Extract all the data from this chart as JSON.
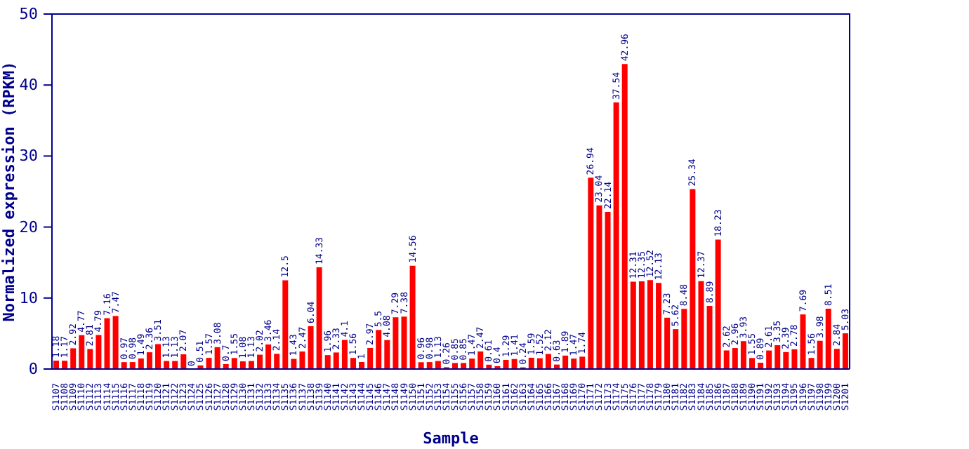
{
  "chart_data": {
    "type": "bar",
    "xlabel": "Sample",
    "ylabel": "Normalized expression (RPKM)",
    "categories": [
      "S1107",
      "S1108",
      "S1109",
      "S1110",
      "S1112",
      "S1113",
      "S1114",
      "S1115",
      "S1116",
      "S1117",
      "S1118",
      "S1119",
      "S1120",
      "S1121",
      "S1122",
      "S1123",
      "S1124",
      "S1125",
      "S1126",
      "S1127",
      "S1128",
      "S1129",
      "S1130",
      "S1131",
      "S1132",
      "S1133",
      "S1134",
      "S1135",
      "S1136",
      "S1137",
      "S1138",
      "S1139",
      "S1140",
      "S1141",
      "S1142",
      "S1143",
      "S1144",
      "S1145",
      "S1146",
      "S1147",
      "S1148",
      "S1149",
      "S1150",
      "S1151",
      "S1152",
      "S1153",
      "S1154",
      "S1155",
      "S1156",
      "S1157",
      "S1158",
      "S1159",
      "S1160",
      "S1161",
      "S1162",
      "S1163",
      "S1164",
      "S1165",
      "S1166",
      "S1167",
      "S1168",
      "S1169",
      "S1170",
      "S1171",
      "S1172",
      "S1173",
      "S1174",
      "S1175",
      "S1176",
      "S1177",
      "S1178",
      "S1179",
      "S1180",
      "S1181",
      "S1182",
      "S1183",
      "S1184",
      "S1185",
      "S1186",
      "S1187",
      "S1188",
      "S1189",
      "S1190",
      "S1191",
      "S1192",
      "S1193",
      "S1194",
      "S1195",
      "S1196",
      "S1197",
      "S1198",
      "S1199",
      "S1200",
      "S1201"
    ],
    "values": [
      1.18,
      1.17,
      2.92,
      4.77,
      2.81,
      4.79,
      7.16,
      7.47,
      0.97,
      0.98,
      1.49,
      2.36,
      3.51,
      1.13,
      1.13,
      2.07,
      0,
      0.51,
      1.57,
      3.08,
      0.7,
      1.55,
      1.08,
      1.13,
      2.02,
      3.46,
      2.14,
      12.5,
      1.43,
      2.47,
      6.04,
      14.33,
      1.96,
      2.33,
      4.1,
      1.56,
      1,
      2.97,
      5.5,
      4.08,
      7.29,
      7.38,
      14.56,
      0.96,
      0.98,
      1.13,
      0.26,
      0.85,
      0.85,
      1.47,
      2.47,
      0.61,
      0.4,
      1.29,
      1.41,
      0.24,
      1.59,
      1.52,
      2.12,
      0.63,
      1.89,
      1.47,
      1.74,
      26.94,
      23.04,
      22.14,
      37.54,
      42.96,
      12.31,
      12.35,
      12.52,
      12.13,
      7.23,
      5.62,
      8.48,
      25.34,
      12.37,
      8.89,
      18.23,
      2.62,
      2.96,
      3.93,
      1.55,
      0.89,
      2.61,
      3.35,
      2.39,
      2.78,
      7.69,
      1.56,
      3.98,
      8.51,
      2.84,
      5.03
    ],
    "color": "#ff0000",
    "ylim": [
      0,
      50
    ],
    "yticks": [
      0,
      10,
      20,
      30,
      40,
      50
    ],
    "grid": false,
    "data_labels": true
  }
}
